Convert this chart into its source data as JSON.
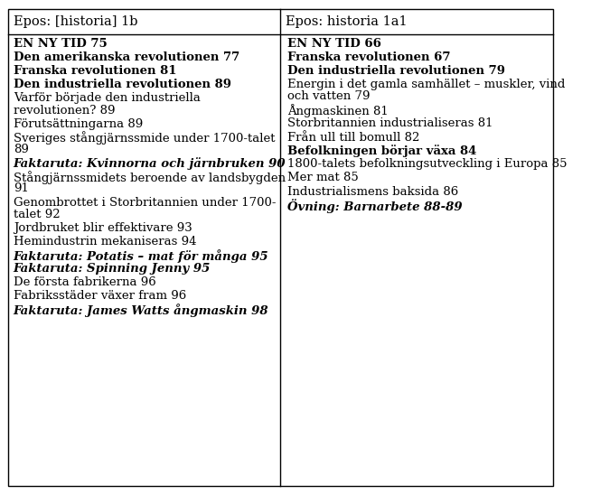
{
  "col1_header": "Epos: [historia] 1b",
  "col2_header": "Epos: historia 1a1",
  "col1_entries": [
    {
      "text": "EN NY TID 75",
      "style": "bold"
    },
    {
      "text": "Den amerikanska revolutionen 77",
      "style": "bold"
    },
    {
      "text": "Franska revolutionen 81",
      "style": "bold"
    },
    {
      "text": "Den industriella revolutionen 89",
      "style": "bold"
    },
    {
      "text": "Varför började den industriella\nrevolutionen? 89",
      "style": "normal"
    },
    {
      "text": "Förutsättningarna 89",
      "style": "normal"
    },
    {
      "text": "Sveriges stångjärnssmide under 1700-talet\n89",
      "style": "normal"
    },
    {
      "text": "Faktaruta: Kvinnorna och järnbruken 90",
      "style": "bolditalic"
    },
    {
      "text": "Stångjärnssmidets beroende av landsbygden\n91",
      "style": "normal"
    },
    {
      "text": "Genombrottet i Storbritannien under 1700-\ntalet 92",
      "style": "normal"
    },
    {
      "text": "Jordbruket blir effektivare 93",
      "style": "normal"
    },
    {
      "text": "Hemindustrin mekaniseras 94",
      "style": "normal"
    },
    {
      "text": "Faktaruta: Potatis – mat för många 95",
      "style": "bolditalic"
    },
    {
      "text": "Faktaruta: Spinning Jenny 95",
      "style": "bolditalic"
    },
    {
      "text": "De första fabrikerna 96",
      "style": "normal"
    },
    {
      "text": "Fabriksstäder växer fram 96",
      "style": "normal"
    },
    {
      "text": "Faktaruta: James Watts ångmaskin 98",
      "style": "bolditalic"
    }
  ],
  "col2_entries": [
    {
      "text": "EN NY TID 66",
      "style": "bold"
    },
    {
      "text": "Franska revolutionen 67",
      "style": "bold"
    },
    {
      "text": "Den industriella revolutionen 79",
      "style": "bold"
    },
    {
      "text": "Energin i det gamla samhället – muskler, vind\noch vatten 79",
      "style": "normal"
    },
    {
      "text": "Ångmaskinen 81",
      "style": "normal"
    },
    {
      "text": "Storbritannien industrialiseras 81",
      "style": "normal"
    },
    {
      "text": "Från ull till bomull 82",
      "style": "normal"
    },
    {
      "text": "Befolkningen börjar växa 84",
      "style": "bold"
    },
    {
      "text": "1800-talets befolkningsutveckling i Europa 85",
      "style": "normal"
    },
    {
      "text": "Mer mat 85",
      "style": "normal"
    },
    {
      "text": "Industrialismens baksida 86",
      "style": "normal"
    },
    {
      "text": "Övning: Barnarbete 88-89",
      "style": "bolditalic"
    }
  ],
  "background_color": "#ffffff",
  "border_color": "#000000",
  "header_bg": "#ffffff",
  "font_size": 9.5,
  "header_font_size": 10.5
}
